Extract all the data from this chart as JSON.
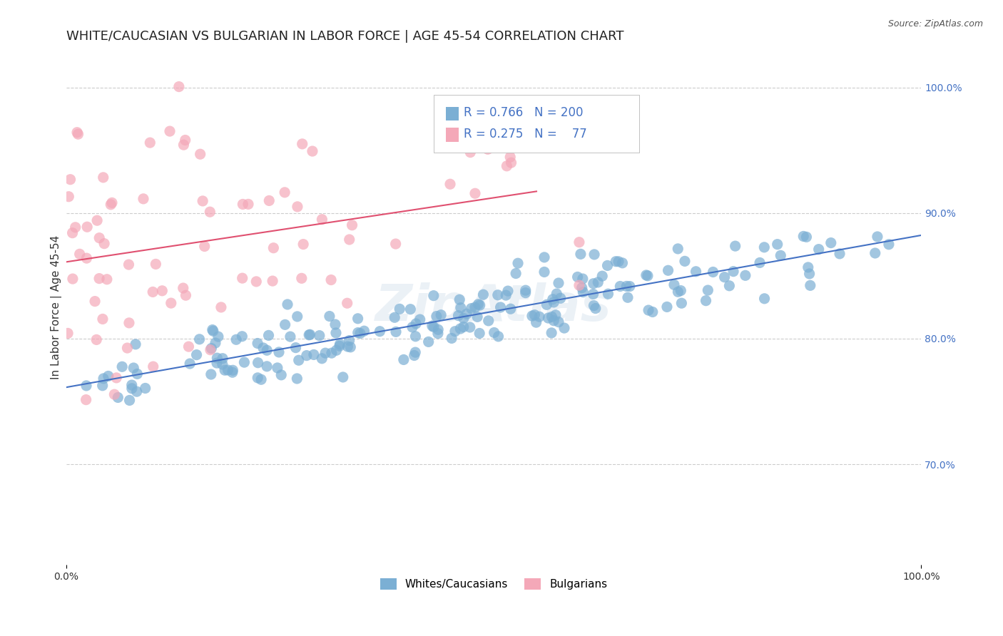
{
  "title": "WHITE/CAUCASIAN VS BULGARIAN IN LABOR FORCE | AGE 45-54 CORRELATION CHART",
  "source": "Source: ZipAtlas.com",
  "ylabel": "In Labor Force | Age 45-54",
  "xlim": [
    0.0,
    1.0
  ],
  "ylim": [
    0.62,
    1.03
  ],
  "ytick_labels_right": [
    "100.0%",
    "90.0%",
    "80.0%",
    "70.0%"
  ],
  "yticks_right": [
    1.0,
    0.9,
    0.8,
    0.7
  ],
  "blue_R": 0.766,
  "blue_N": 200,
  "pink_R": 0.275,
  "pink_N": 77,
  "blue_color": "#7BAFD4",
  "pink_color": "#F4A8B8",
  "blue_line_color": "#4472C4",
  "pink_line_color": "#E05070",
  "legend_blue_label": "Whites/Caucasians",
  "legend_pink_label": "Bulgarians",
  "watermark": "ZipAtlas",
  "background_color": "#FFFFFF",
  "grid_color": "#CCCCCC",
  "title_fontsize": 13,
  "axis_fontsize": 11,
  "tick_fontsize": 10,
  "seed": 42
}
